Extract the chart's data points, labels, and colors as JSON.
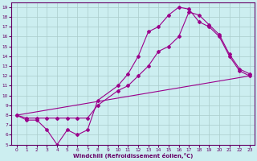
{
  "xlabel": "Windchill (Refroidissement éolien,°C)",
  "bg_color": "#cceef0",
  "line_color": "#9b008b",
  "grid_color": "#aacccc",
  "xlim": [
    -0.5,
    23.5
  ],
  "ylim": [
    5,
    19.5
  ],
  "xticks": [
    0,
    1,
    2,
    3,
    4,
    5,
    6,
    7,
    8,
    9,
    10,
    11,
    12,
    13,
    14,
    15,
    16,
    17,
    18,
    19,
    20,
    21,
    22,
    23
  ],
  "yticks": [
    5,
    6,
    7,
    8,
    9,
    10,
    11,
    12,
    13,
    14,
    15,
    16,
    17,
    18,
    19
  ],
  "line1_x": [
    0,
    1,
    2,
    3,
    4,
    5,
    6,
    7,
    8,
    10,
    11,
    12,
    13,
    14,
    15,
    16,
    17,
    18,
    19,
    20,
    21,
    22,
    23
  ],
  "line1_y": [
    8.0,
    7.5,
    7.5,
    6.5,
    5.0,
    6.5,
    6.0,
    6.5,
    9.5,
    11.0,
    12.2,
    14.0,
    16.5,
    17.0,
    18.2,
    19.0,
    18.8,
    17.5,
    17.0,
    16.0,
    14.0,
    12.5,
    12.0
  ],
  "line2_x": [
    0,
    1,
    2,
    3,
    4,
    5,
    6,
    7,
    8,
    10,
    11,
    12,
    13,
    14,
    15,
    16,
    17,
    18,
    19,
    20,
    21,
    22,
    23
  ],
  "line2_y": [
    8.0,
    7.7,
    7.7,
    7.7,
    7.7,
    7.7,
    7.7,
    7.7,
    9.0,
    10.5,
    11.0,
    12.0,
    13.0,
    14.5,
    15.0,
    16.0,
    18.5,
    18.2,
    17.2,
    16.2,
    14.2,
    12.7,
    12.2
  ],
  "line3_x": [
    0,
    23
  ],
  "line3_y": [
    8.0,
    12.0
  ]
}
